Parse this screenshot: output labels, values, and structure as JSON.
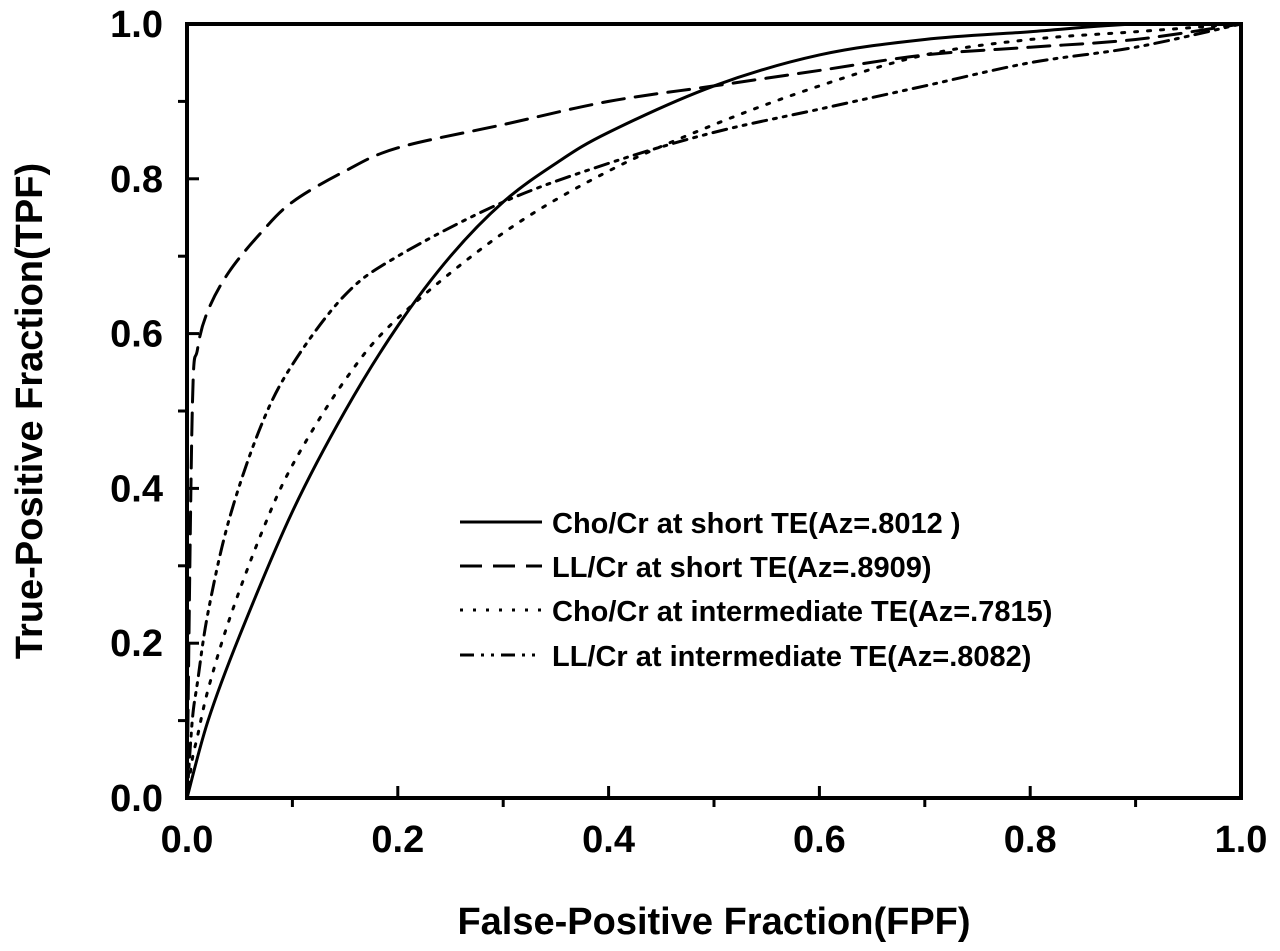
{
  "chart_data": {
    "type": "line",
    "title": "",
    "xlabel": "False-Positive Fraction(FPF)",
    "ylabel": "True-Positive Fraction(TPF)",
    "xlim": [
      0,
      1
    ],
    "ylim": [
      0,
      1
    ],
    "xticks": [
      "0.0",
      "0.2",
      "0.4",
      "0.6",
      "0.8",
      "1.0"
    ],
    "yticks": [
      "0.0",
      "0.2",
      "0.4",
      "0.6",
      "0.8",
      "1.0"
    ],
    "grid": false,
    "legend_position": "bottom-right",
    "series": [
      {
        "name": "Cho/Cr at short TE(Az=.8012 )",
        "line_style": "solid",
        "x": [
          0,
          0.02,
          0.05,
          0.1,
          0.15,
          0.2,
          0.25,
          0.3,
          0.35,
          0.4,
          0.5,
          0.6,
          0.7,
          0.8,
          0.9,
          1.0
        ],
        "y": [
          0,
          0.1,
          0.21,
          0.37,
          0.5,
          0.61,
          0.7,
          0.77,
          0.82,
          0.86,
          0.92,
          0.96,
          0.98,
          0.99,
          1.0,
          1.0
        ]
      },
      {
        "name": "LL/Cr at short TE(Az=.8909)",
        "line_style": "dashed",
        "x": [
          0,
          0.005,
          0.01,
          0.02,
          0.04,
          0.07,
          0.1,
          0.15,
          0.2,
          0.3,
          0.4,
          0.5,
          0.6,
          0.7,
          0.8,
          0.9,
          1.0
        ],
        "y": [
          0,
          0.5,
          0.58,
          0.63,
          0.68,
          0.73,
          0.77,
          0.81,
          0.84,
          0.87,
          0.9,
          0.92,
          0.94,
          0.96,
          0.97,
          0.98,
          1.0
        ]
      },
      {
        "name": "Cho/Cr at intermediate TE(Az=.7815)",
        "line_style": "dotted",
        "x": [
          0,
          0.005,
          0.01,
          0.02,
          0.04,
          0.07,
          0.1,
          0.15,
          0.2,
          0.3,
          0.4,
          0.5,
          0.6,
          0.7,
          0.8,
          0.9,
          1.0
        ],
        "y": [
          0,
          0.05,
          0.08,
          0.14,
          0.23,
          0.34,
          0.43,
          0.54,
          0.62,
          0.73,
          0.81,
          0.87,
          0.92,
          0.96,
          0.98,
          0.99,
          1.0
        ]
      },
      {
        "name": "LL/Cr at intermediate TE(Az=.8082)",
        "line_style": "dash-dot-dot",
        "x": [
          0,
          0.005,
          0.01,
          0.02,
          0.04,
          0.07,
          0.1,
          0.15,
          0.2,
          0.3,
          0.4,
          0.5,
          0.6,
          0.7,
          0.8,
          0.9,
          1.0
        ],
        "y": [
          0,
          0.1,
          0.15,
          0.24,
          0.36,
          0.48,
          0.56,
          0.65,
          0.7,
          0.77,
          0.82,
          0.86,
          0.89,
          0.92,
          0.95,
          0.97,
          1.0
        ]
      }
    ]
  }
}
